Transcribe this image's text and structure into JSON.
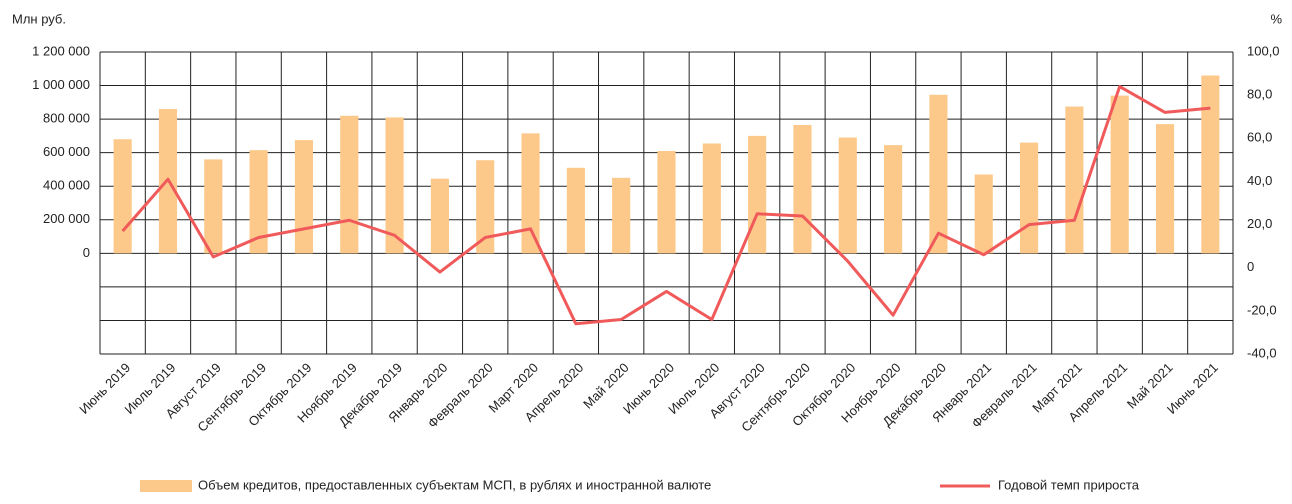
{
  "chart_data": {
    "type": "bar",
    "y_axis_label": "Млн руб.",
    "y2_axis_label": "%",
    "categories": [
      "Июнь 2019",
      "Июль 2019",
      "Август 2019",
      "Сентябрь 2019",
      "Октябрь 2019",
      "Ноябрь 2019",
      "Декабрь 2019",
      "Январь 2020",
      "Февраль 2020",
      "Март 2020",
      "Апрель 2020",
      "Май 2020",
      "Июнь 2020",
      "Июль 2020",
      "Август 2020",
      "Сентябрь 2020",
      "Октябрь 2020",
      "Ноябрь 2020",
      "Декабрь 2020",
      "Январь 2021",
      "Февраль 2021",
      "Март 2021",
      "Апрель 2021",
      "Май 2021",
      "Июнь 2021"
    ],
    "series": [
      {
        "name": "Объем кредитов, предоставленных субъектам МСП, в рублях и иностранной валюте",
        "type": "bar",
        "color": "#fdc98a",
        "values": [
          680000,
          860000,
          560000,
          615000,
          675000,
          820000,
          810000,
          445000,
          555000,
          715000,
          510000,
          450000,
          610000,
          655000,
          700000,
          765000,
          690000,
          645000,
          945000,
          470000,
          660000,
          875000,
          940000,
          770000,
          1060000
        ]
      },
      {
        "name": "Годовой темп прироста",
        "type": "line",
        "axis": "y2",
        "color": "#f05a5a",
        "values": [
          17,
          41,
          5,
          14,
          18,
          22,
          15,
          -2,
          14,
          18,
          -26,
          -24,
          -11,
          -24,
          25,
          24,
          3,
          -22,
          16,
          6,
          20,
          22,
          84,
          72,
          74
        ]
      }
    ],
    "ylim": [
      -600000,
      1200000
    ],
    "yticks": [
      {
        "value": 0,
        "label": "0"
      },
      {
        "value": 200000,
        "label": "200 000"
      },
      {
        "value": 400000,
        "label": "400 000"
      },
      {
        "value": 600000,
        "label": "600 000"
      },
      {
        "value": 800000,
        "label": "800 000"
      },
      {
        "value": 1000000,
        "label": "1 000 000"
      },
      {
        "value": 1200000,
        "label": "1 200 000"
      }
    ],
    "y2lim": [
      -40,
      100
    ],
    "y2ticks": [
      {
        "value": -40,
        "label": "-40,0"
      },
      {
        "value": -20,
        "label": "-20,0"
      },
      0,
      {
        "value": 20,
        "label": "20,0"
      },
      {
        "value": 40,
        "label": "40,0"
      },
      {
        "value": 60,
        "label": "60,0"
      },
      {
        "value": 80,
        "label": "80,0"
      },
      {
        "value": 100,
        "label": "100,0"
      }
    ],
    "grid": true,
    "legend": "bottom"
  }
}
